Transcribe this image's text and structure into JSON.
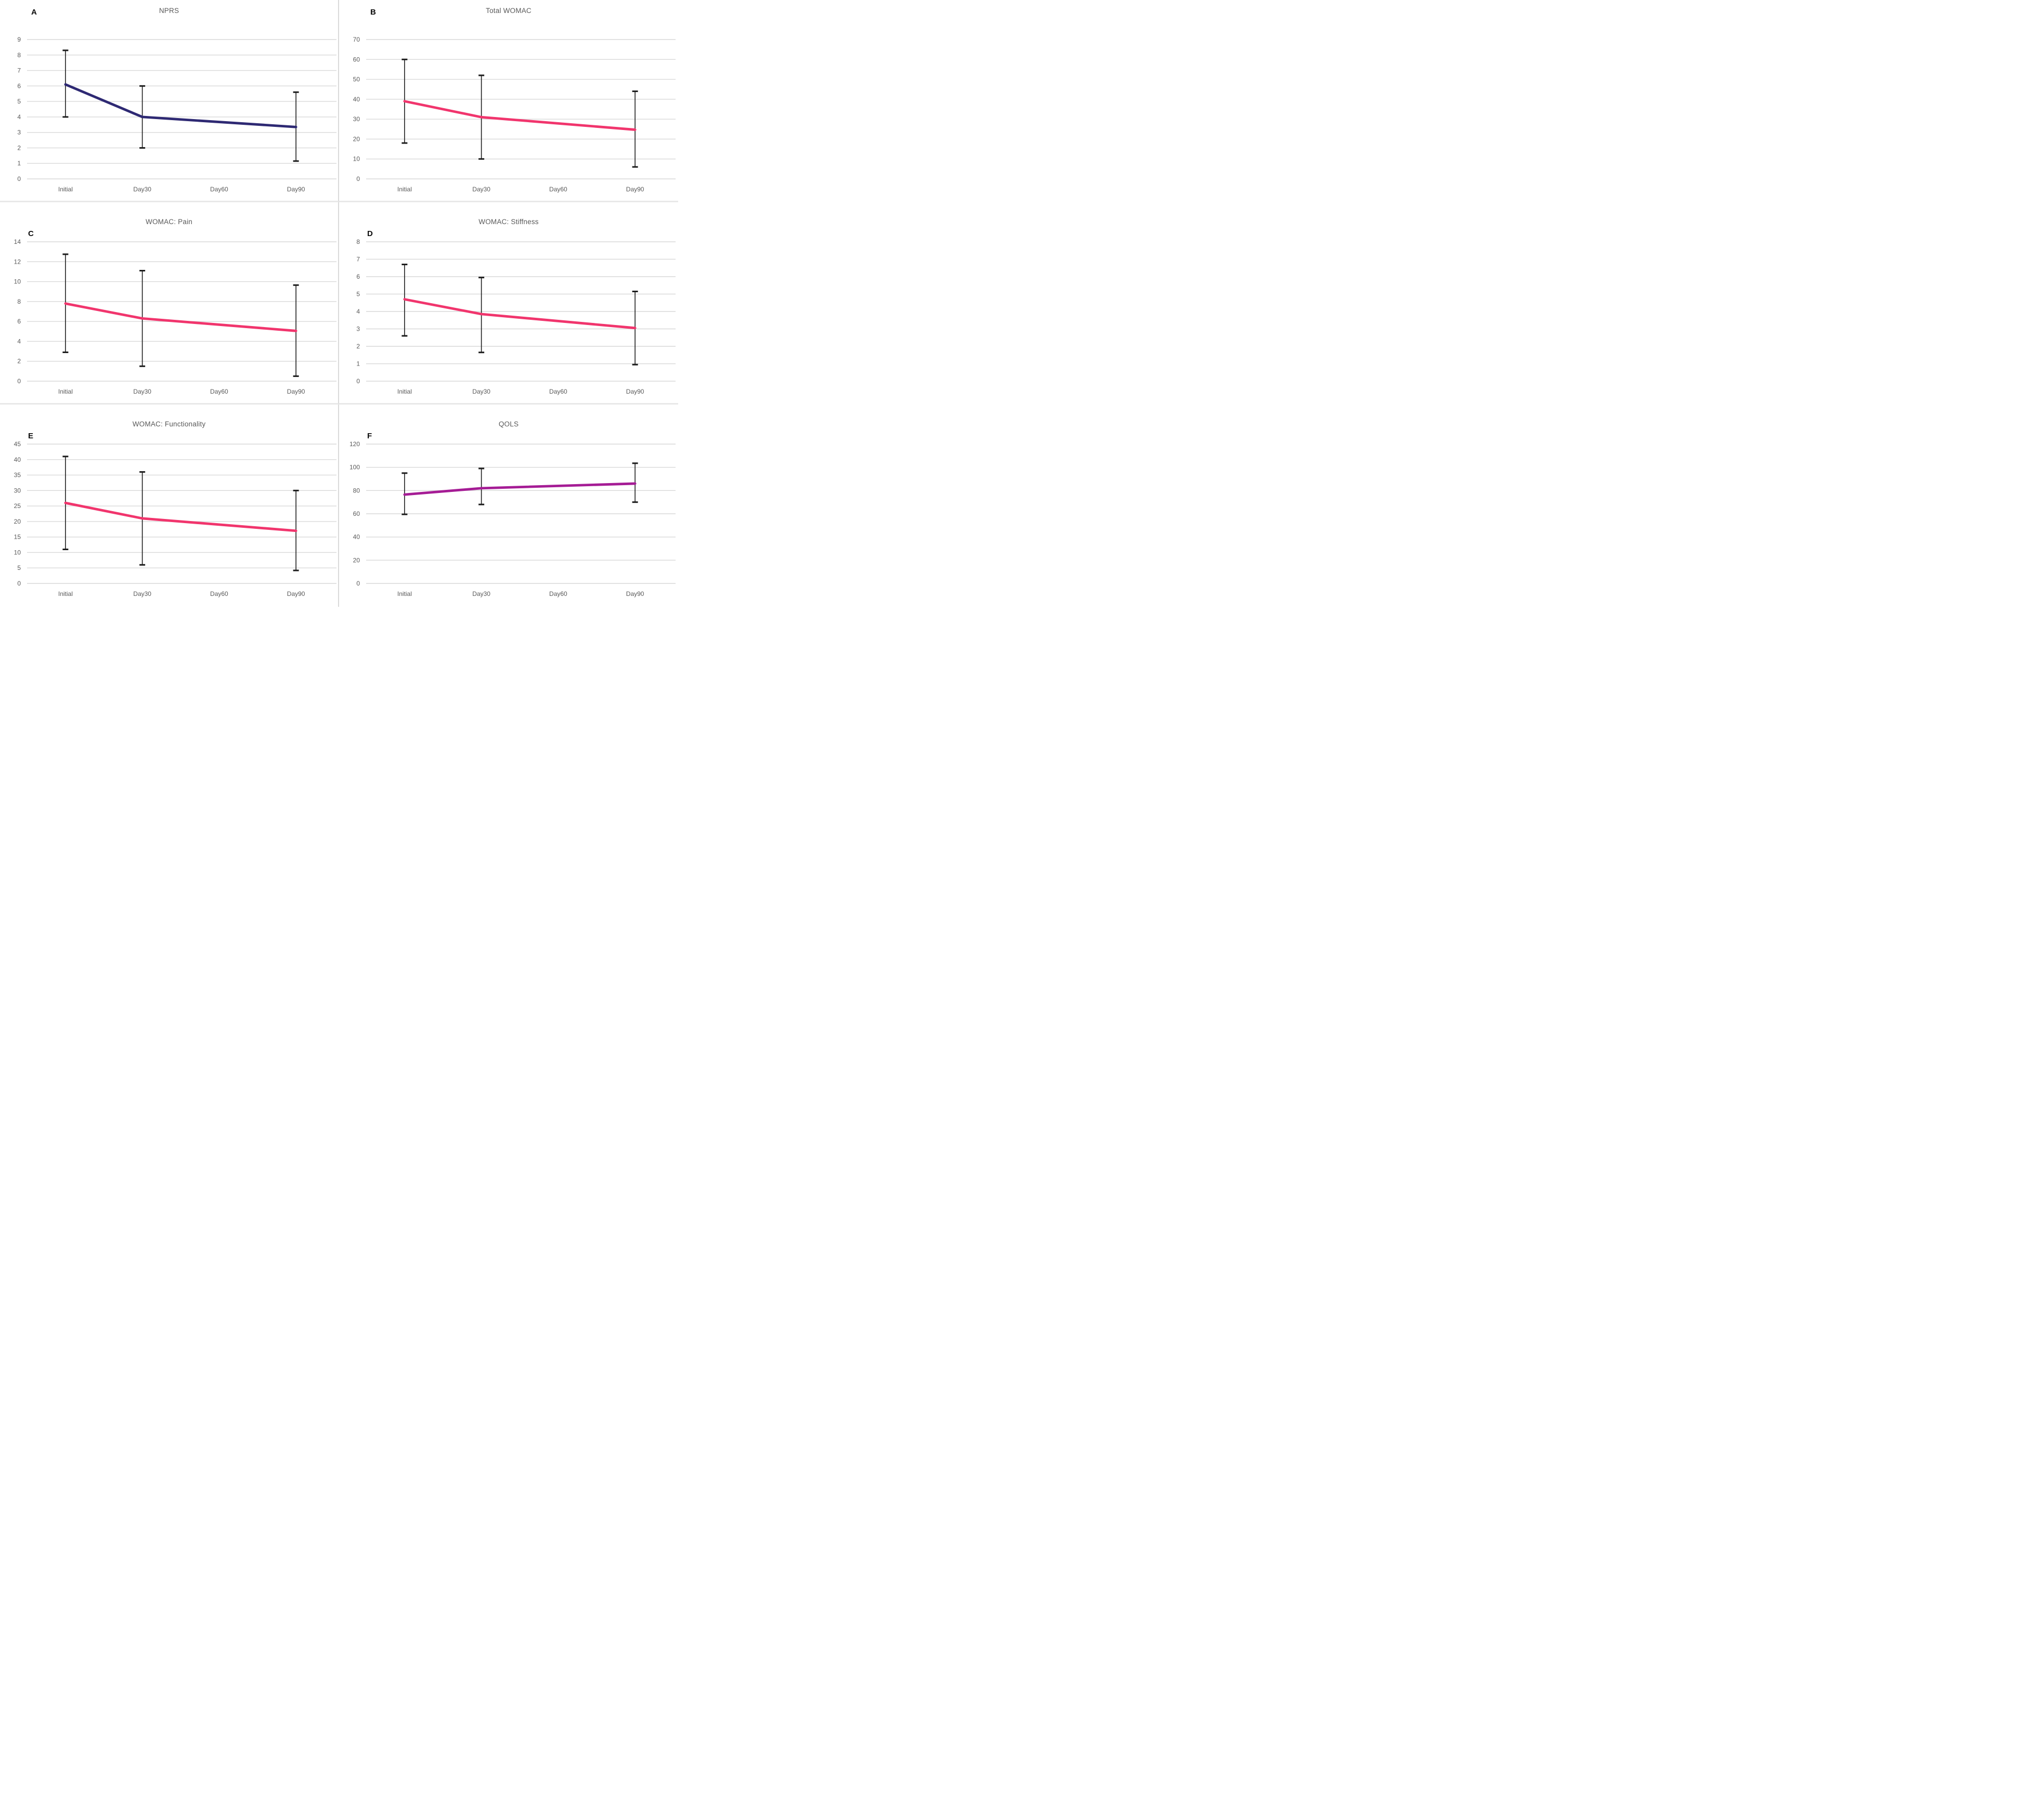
{
  "figure": {
    "style": {
      "background": "#FFFFFF",
      "grid_color": "#D9D9D9",
      "error_bar_color": "#1C1C1C",
      "tick_label_color": "#595959",
      "title_color": "#595959",
      "letter_color": "#0A0A0A",
      "divider_color": "#DADADA"
    }
  },
  "chart_data": [
    {
      "letter": "A",
      "title": "NPRS",
      "type": "line",
      "categories": [
        "Initial",
        "Day30",
        "Day60",
        "Day90"
      ],
      "values": [
        6.1,
        4.0,
        null,
        3.35
      ],
      "error_low": [
        4.0,
        2.0,
        null,
        1.15
      ],
      "error_high": [
        8.3,
        6.0,
        null,
        5.6
      ],
      "ylim": [
        0,
        9
      ],
      "yticks": [
        0,
        1,
        2,
        3,
        4,
        5,
        6,
        7,
        8,
        9
      ],
      "line_color": "#2E2973",
      "grid": true,
      "legend": null,
      "xlabel": "",
      "ylabel": ""
    },
    {
      "letter": "B",
      "title": "Total WOMAC",
      "type": "line",
      "categories": [
        "Initial",
        "Day30",
        "Day60",
        "Day90"
      ],
      "values": [
        39,
        31,
        null,
        24.7
      ],
      "error_low": [
        18,
        10,
        null,
        6
      ],
      "error_high": [
        60,
        52,
        null,
        44
      ],
      "ylim": [
        0,
        70
      ],
      "yticks": [
        0,
        10,
        20,
        30,
        40,
        50,
        60,
        70
      ],
      "line_color": "#F1356D",
      "grid": true,
      "legend": null,
      "xlabel": "",
      "ylabel": ""
    },
    {
      "letter": "C",
      "title": "WOMAC: Pain",
      "type": "line",
      "categories": [
        "Initial",
        "Day30",
        "Day60",
        "Day90"
      ],
      "values": [
        7.8,
        6.3,
        null,
        5.05
      ],
      "error_low": [
        2.9,
        1.5,
        null,
        0.5
      ],
      "error_high": [
        12.75,
        11.1,
        null,
        9.65
      ],
      "ylim": [
        0,
        14
      ],
      "yticks": [
        0,
        2,
        4,
        6,
        8,
        10,
        12,
        14
      ],
      "line_color": "#F1356D",
      "grid": true,
      "legend": null,
      "xlabel": "",
      "ylabel": ""
    },
    {
      "letter": "D",
      "title": "WOMAC: Stiffness",
      "type": "line",
      "categories": [
        "Initial",
        "Day30",
        "Day60",
        "Day90"
      ],
      "values": [
        4.7,
        3.85,
        null,
        3.05
      ],
      "error_low": [
        2.6,
        1.65,
        null,
        0.95
      ],
      "error_high": [
        6.7,
        5.95,
        null,
        5.15
      ],
      "ylim": [
        0,
        8
      ],
      "yticks": [
        0,
        1,
        2,
        3,
        4,
        5,
        6,
        7,
        8
      ],
      "line_color": "#F1356D",
      "grid": true,
      "legend": null,
      "xlabel": "",
      "ylabel": ""
    },
    {
      "letter": "E",
      "title": "WOMAC: Functionality",
      "type": "line",
      "categories": [
        "Initial",
        "Day30",
        "Day60",
        "Day90"
      ],
      "values": [
        26,
        21,
        null,
        17
      ],
      "error_low": [
        11,
        6,
        null,
        4.2
      ],
      "error_high": [
        41,
        36,
        null,
        30
      ],
      "ylim": [
        0,
        45
      ],
      "yticks": [
        0,
        5,
        10,
        15,
        20,
        25,
        30,
        35,
        40,
        45
      ],
      "line_color": "#F1356D",
      "grid": true,
      "legend": null,
      "xlabel": "",
      "ylabel": ""
    },
    {
      "letter": "F",
      "title": "QOLS",
      "type": "line",
      "categories": [
        "Initial",
        "Day30",
        "Day60",
        "Day90"
      ],
      "values": [
        76.5,
        82,
        null,
        86
      ],
      "error_low": [
        59.5,
        68,
        null,
        70
      ],
      "error_high": [
        95,
        99,
        null,
        103.5
      ],
      "ylim": [
        0,
        120
      ],
      "yticks": [
        0,
        20,
        40,
        60,
        80,
        100,
        120
      ],
      "line_color": "#A51C95",
      "grid": true,
      "legend": null,
      "xlabel": "",
      "ylabel": ""
    }
  ]
}
